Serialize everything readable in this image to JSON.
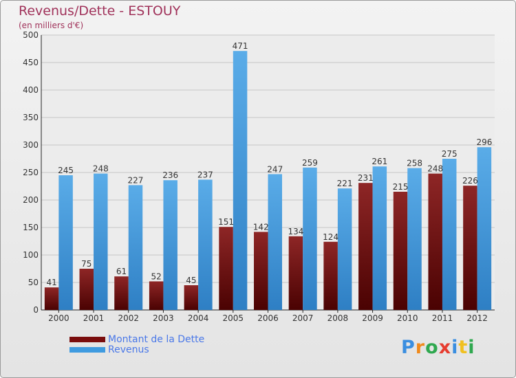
{
  "title": "Revenus/Dette - ESTOUY",
  "subtitle": "(en milliers d'€)",
  "logo_text": "Proxiti",
  "logo_colors": [
    "#3a8ee0",
    "#f08a1c",
    "#2fa84f",
    "#e63c2f",
    "#3a8ee0",
    "#f0c020",
    "#2fa84f"
  ],
  "chart_data": {
    "type": "bar",
    "categories": [
      "2000",
      "2001",
      "2002",
      "2003",
      "2004",
      "2005",
      "2006",
      "2007",
      "2008",
      "2009",
      "2010",
      "2011",
      "2012"
    ],
    "series": [
      {
        "name": "Montant de la Dette",
        "color": "#7a0d0d",
        "values": [
          41,
          75,
          61,
          52,
          45,
          151,
          142,
          134,
          124,
          231,
          215,
          248,
          226
        ]
      },
      {
        "name": "Revenus",
        "color": "#3f9be0",
        "values": [
          245,
          248,
          227,
          236,
          237,
          471,
          247,
          259,
          221,
          261,
          258,
          275,
          296
        ]
      }
    ],
    "ylim": [
      0,
      500
    ],
    "yticks": [
      0,
      50,
      100,
      150,
      200,
      250,
      300,
      350,
      400,
      450,
      500
    ],
    "grid": true,
    "legend_position": "bottom-left"
  }
}
